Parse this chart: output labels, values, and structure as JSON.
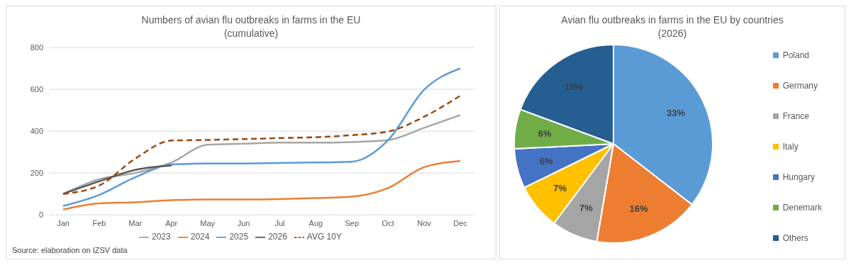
{
  "chart_data": [
    {
      "type": "line",
      "title": "Numbers of avian flu outbreaks in farms in the EU\n(cumulative)",
      "categories": [
        "Jan",
        "Feb",
        "Mar",
        "Apr",
        "May",
        "Jun",
        "Jul",
        "Aug",
        "Sep",
        "Oct",
        "Nov",
        "Dec"
      ],
      "series": [
        {
          "name": "2023",
          "color": "#a5a5a5",
          "values": [
            100,
            170,
            200,
            250,
            335,
            340,
            345,
            345,
            348,
            357,
            416,
            477
          ]
        },
        {
          "name": "2024",
          "color": "#ed7d31",
          "values": [
            25,
            55,
            60,
            70,
            73,
            73,
            75,
            80,
            87,
            128,
            228,
            257
          ]
        },
        {
          "name": "2025",
          "color": "#5b9bd5",
          "values": [
            42,
            95,
            180,
            240,
            245,
            245,
            248,
            250,
            254,
            357,
            598,
            700
          ]
        },
        {
          "name": "2026",
          "color": "#595959",
          "values": [
            100,
            160,
            215,
            236,
            null,
            null,
            null,
            null,
            null,
            null,
            null,
            null
          ]
        },
        {
          "name": "AVG 10Y",
          "color": "#9e480e",
          "line_style": "dashed",
          "values": [
            100,
            140,
            269,
            355,
            358,
            362,
            367,
            371,
            381,
            398,
            469,
            569
          ]
        }
      ],
      "ylim": [
        0,
        800
      ],
      "yticks": [
        0,
        200,
        400,
        600,
        800
      ],
      "grid": "y",
      "legend": "bottom",
      "marker": "none",
      "line_style": "solid",
      "annotations": [
        "Source: elaboration on  IZSV data"
      ]
    },
    {
      "type": "pie",
      "title": "Avian flu outbreaks in farms in the EU by countries\n(2026)",
      "categories": [
        "Poland",
        "Germany",
        "France",
        "Italy",
        "Hungary",
        "Denemark",
        "Others"
      ],
      "values": [
        33,
        16,
        7,
        7,
        6,
        6,
        18
      ],
      "colors": [
        "#5b9bd5",
        "#ed7d31",
        "#a5a5a5",
        "#ffc000",
        "#4472c4",
        "#70ad47",
        "#255e91"
      ],
      "value_labels": [
        "33%",
        "16%",
        "7%",
        "7%",
        "6%",
        "6%",
        "18%"
      ],
      "legend": "right"
    }
  ]
}
